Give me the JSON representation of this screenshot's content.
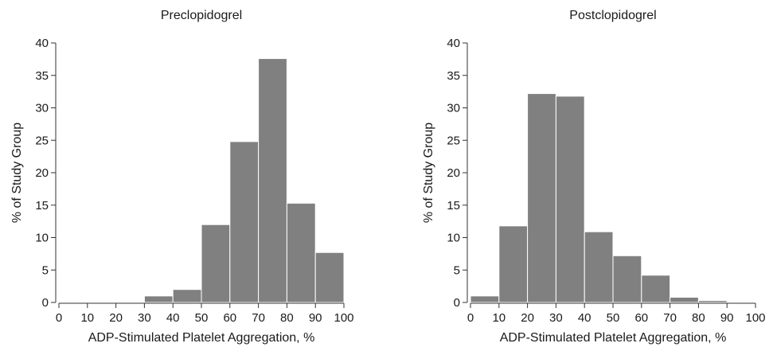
{
  "colors": {
    "bar_fill": "#808080",
    "axis": "#333333",
    "background": "#ffffff"
  },
  "chart_data": [
    {
      "type": "bar",
      "title": "Preclopidogrel",
      "xlabel": "ADP-Stimulated Platelet Aggregation, %",
      "ylabel": "% of Study Group",
      "xlim": [
        0,
        100
      ],
      "ylim": [
        0,
        40
      ],
      "xticks": [
        "0",
        "10",
        "20",
        "30",
        "40",
        "50",
        "60",
        "70",
        "80",
        "90",
        "100"
      ],
      "yticks": [
        "0",
        "5",
        "10",
        "15",
        "20",
        "25",
        "30",
        "35",
        "40"
      ],
      "bins": [
        [
          0,
          10
        ],
        [
          10,
          20
        ],
        [
          20,
          30
        ],
        [
          30,
          40
        ],
        [
          40,
          50
        ],
        [
          50,
          60
        ],
        [
          60,
          70
        ],
        [
          70,
          80
        ],
        [
          80,
          90
        ],
        [
          90,
          100
        ]
      ],
      "values": [
        0,
        0,
        0,
        1.0,
        2.0,
        12.0,
        24.8,
        37.6,
        15.3,
        7.7
      ],
      "grid": false,
      "legend": "none"
    },
    {
      "type": "bar",
      "title": "Postclopidogrel",
      "xlabel": "ADP-Stimulated Platelet Aggregation, %",
      "ylabel": "% of Study Group",
      "xlim": [
        0,
        100
      ],
      "ylim": [
        0,
        40
      ],
      "xticks": [
        "0",
        "10",
        "20",
        "30",
        "40",
        "50",
        "60",
        "70",
        "80",
        "90",
        "100"
      ],
      "yticks": [
        "0",
        "5",
        "10",
        "15",
        "20",
        "25",
        "30",
        "35",
        "40"
      ],
      "bins": [
        [
          0,
          10
        ],
        [
          10,
          20
        ],
        [
          20,
          30
        ],
        [
          30,
          40
        ],
        [
          40,
          50
        ],
        [
          50,
          60
        ],
        [
          60,
          70
        ],
        [
          70,
          80
        ],
        [
          80,
          90
        ],
        [
          90,
          100
        ]
      ],
      "values": [
        1.0,
        11.8,
        32.2,
        31.8,
        10.9,
        7.2,
        4.2,
        0.8,
        0.3,
        0
      ],
      "grid": false,
      "legend": "none"
    }
  ]
}
